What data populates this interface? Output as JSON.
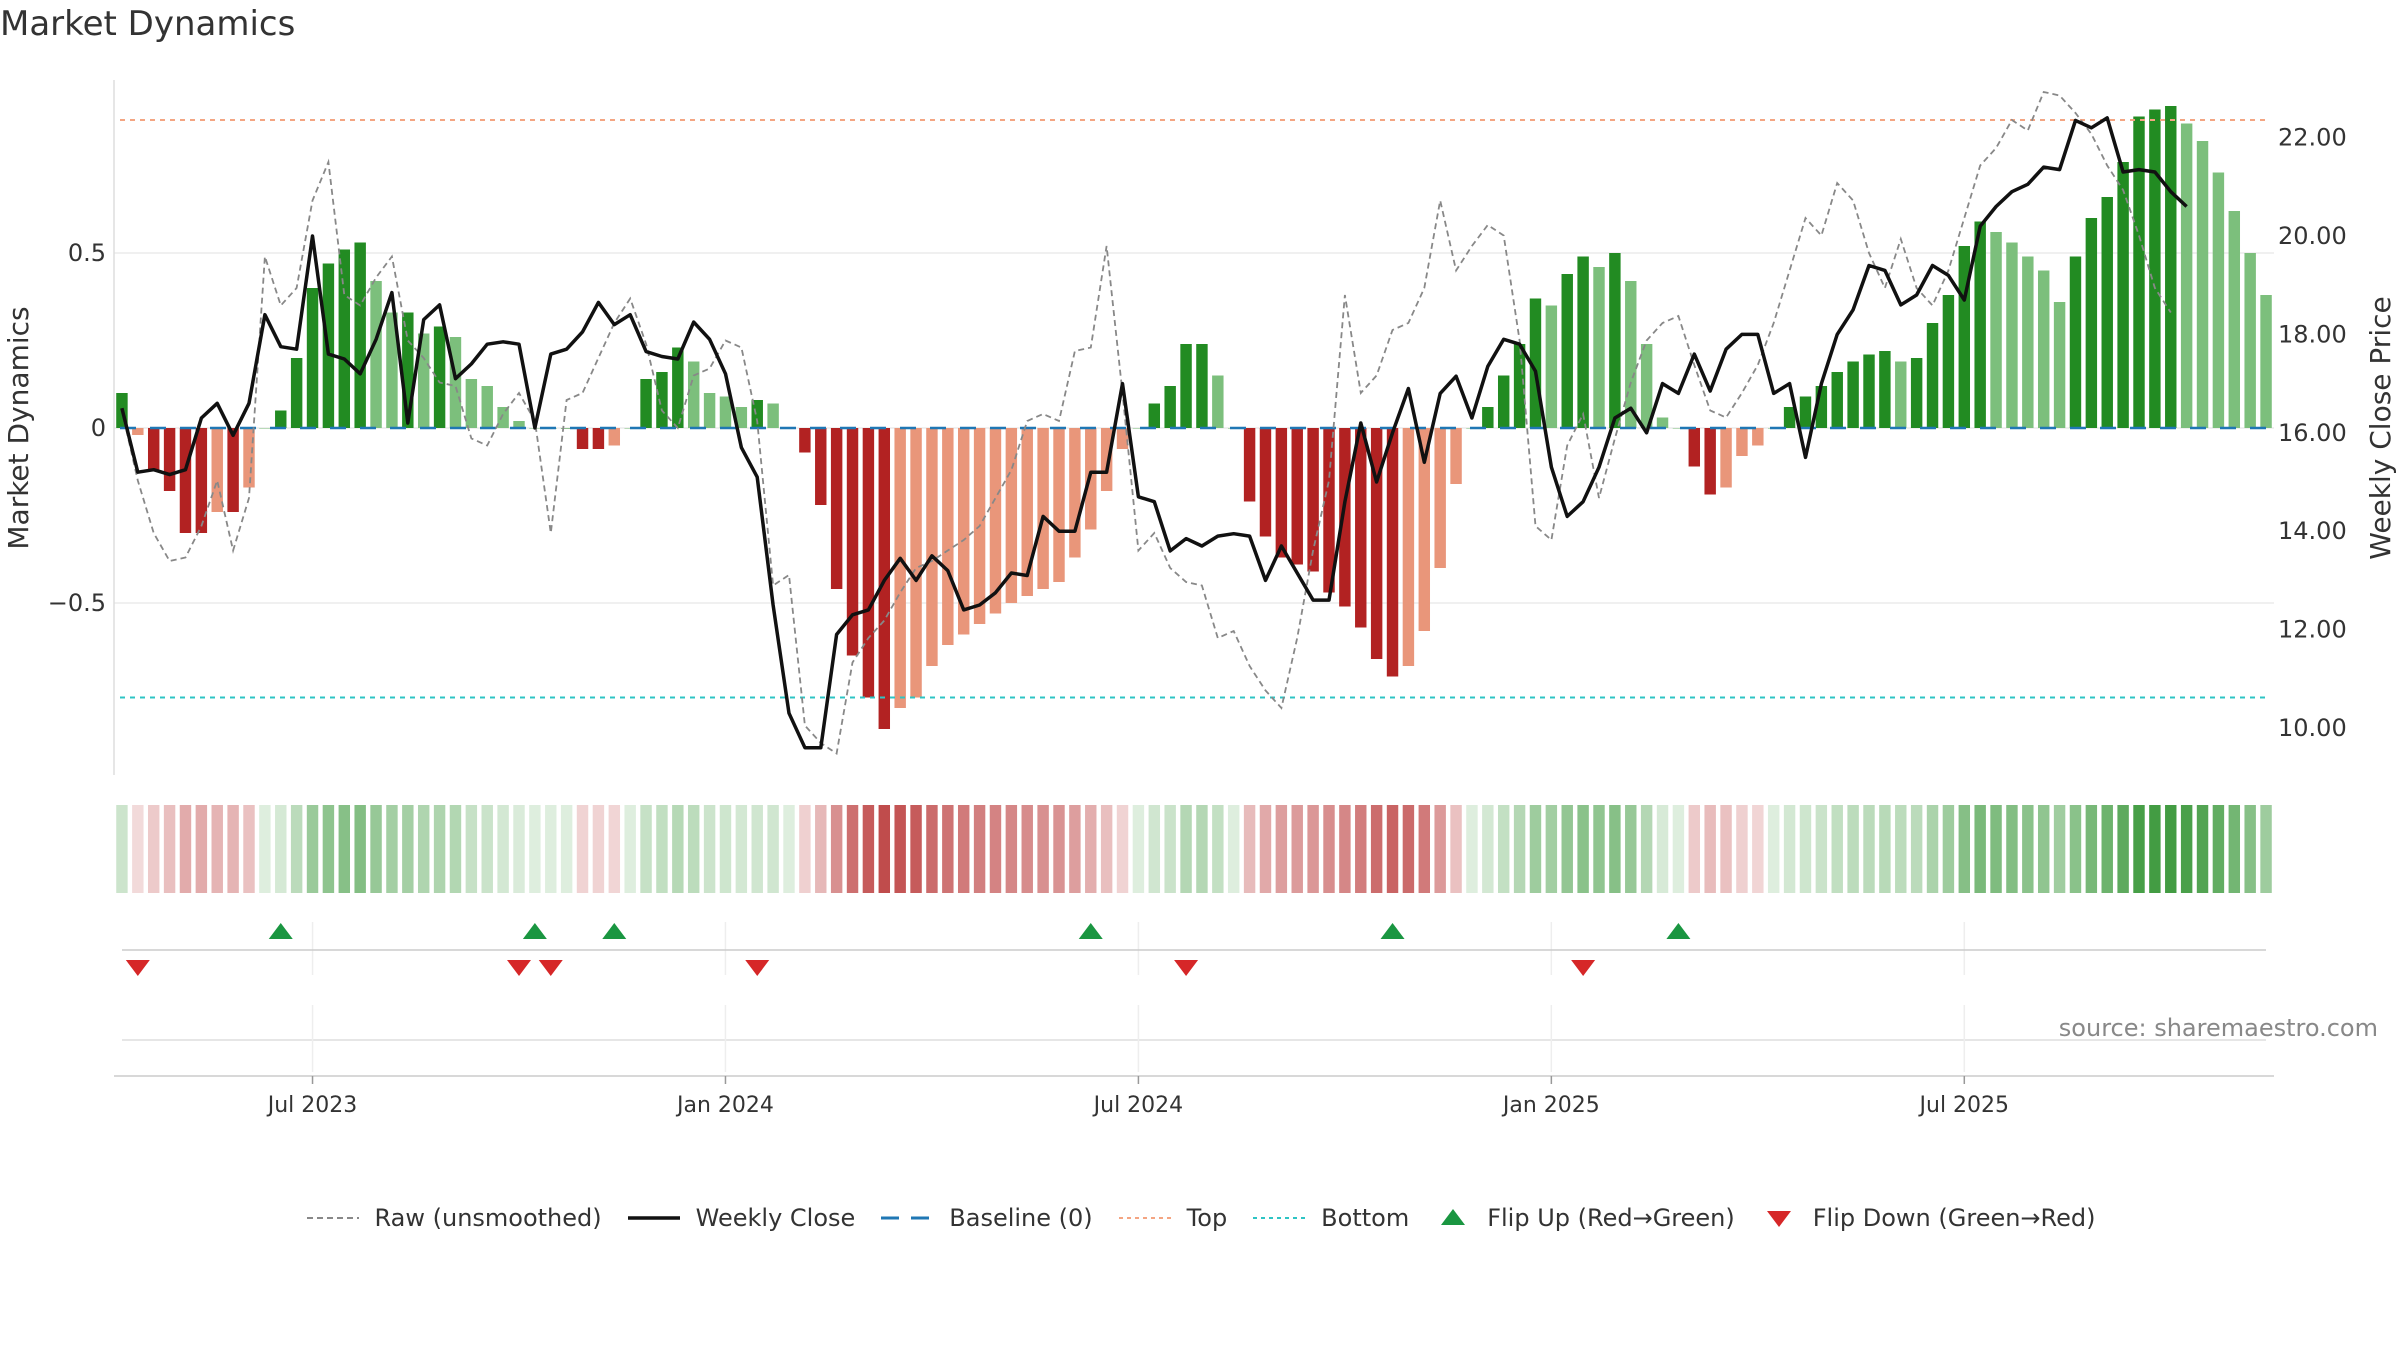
{
  "chart_data": {
    "title": "Market Dynamics",
    "source_note": "source: sharemaestro.com",
    "type": "bar",
    "y_left": {
      "label": "Market Dynamics",
      "ticks": [
        -0.5,
        0,
        0.5
      ],
      "tick_labels": [
        "−0.5",
        "0",
        "0.5"
      ],
      "range": [
        -0.99,
        0.99
      ]
    },
    "y_right": {
      "label": "Weekly Close Price",
      "ticks": [
        10,
        12,
        14,
        16,
        18,
        20,
        22
      ],
      "tick_labels": [
        "10.00",
        "12.00",
        "14.00",
        "16.00",
        "18.00",
        "20.00",
        "22.00"
      ],
      "range": [
        9.0,
        22.9
      ]
    },
    "x_ticks": [
      {
        "label": "Jul 2023",
        "week": 12
      },
      {
        "label": "Jan 2024",
        "week": 38
      },
      {
        "label": "Jul 2024",
        "week": 64
      },
      {
        "label": "Jan 2025",
        "week": 90
      },
      {
        "label": "Jul 2025",
        "week": 116
      }
    ],
    "weeks": 128,
    "top_level": 0.88,
    "bottom_level": -0.77,
    "dynamics": [
      0.1,
      -0.02,
      -0.12,
      -0.18,
      -0.3,
      -0.3,
      -0.24,
      -0.24,
      -0.17,
      0.0,
      0.05,
      0.2,
      0.4,
      0.47,
      0.51,
      0.53,
      0.42,
      0.33,
      0.33,
      0.27,
      0.29,
      0.26,
      0.14,
      0.12,
      0.06,
      0.02,
      0.0,
      0.0,
      0.0,
      -0.06,
      -0.06,
      -0.05,
      0.0,
      0.14,
      0.16,
      0.23,
      0.19,
      0.1,
      0.09,
      0.06,
      0.08,
      0.07,
      0.0,
      -0.07,
      -0.22,
      -0.46,
      -0.65,
      -0.77,
      -0.86,
      -0.8,
      -0.77,
      -0.68,
      -0.62,
      -0.59,
      -0.56,
      -0.53,
      -0.5,
      -0.48,
      -0.46,
      -0.44,
      -0.37,
      -0.29,
      -0.18,
      -0.06,
      0.0,
      0.07,
      0.12,
      0.24,
      0.24,
      0.15,
      0.0,
      -0.21,
      -0.31,
      -0.37,
      -0.39,
      -0.41,
      -0.47,
      -0.51,
      -0.57,
      -0.66,
      -0.71,
      -0.68,
      -0.58,
      -0.4,
      -0.16,
      0.0,
      0.06,
      0.15,
      0.24,
      0.37,
      0.35,
      0.44,
      0.49,
      0.46,
      0.5,
      0.42,
      0.24,
      0.03,
      0.0,
      -0.11,
      -0.19,
      -0.17,
      -0.08,
      -0.05,
      0.0,
      0.06,
      0.09,
      0.12,
      0.16,
      0.19,
      0.21,
      0.22,
      0.19,
      0.2,
      0.3,
      0.38,
      0.52,
      0.59,
      0.56,
      0.53,
      0.49,
      0.45,
      0.36,
      0.49,
      0.6,
      0.66,
      0.76,
      0.89,
      0.91,
      0.92
    ],
    "dynamics_tail": [
      0.87,
      0.82,
      0.73,
      0.62,
      0.5,
      0.38
    ],
    "raw": [
      0.05,
      -0.15,
      -0.3,
      -0.38,
      -0.37,
      -0.28,
      -0.15,
      -0.35,
      -0.2,
      0.49,
      0.35,
      0.4,
      0.65,
      0.76,
      0.38,
      0.35,
      0.43,
      0.49,
      0.25,
      0.2,
      0.13,
      0.12,
      -0.03,
      -0.05,
      0.04,
      0.1,
      0.02,
      -0.3,
      0.08,
      0.1,
      0.2,
      0.3,
      0.37,
      0.24,
      0.05,
      0.0,
      0.15,
      0.17,
      0.25,
      0.23,
      0.02,
      -0.45,
      -0.42,
      -0.85,
      -0.9,
      -0.93,
      -0.67,
      -0.6,
      -0.55,
      -0.47,
      -0.4,
      -0.38,
      -0.35,
      -0.32,
      -0.28,
      -0.2,
      -0.12,
      0.02,
      0.04,
      0.02,
      0.22,
      0.23,
      0.52,
      0.1,
      -0.35,
      -0.3,
      -0.4,
      -0.44,
      -0.45,
      -0.6,
      -0.58,
      -0.68,
      -0.75,
      -0.8,
      -0.6,
      -0.35,
      -0.15,
      0.38,
      0.1,
      0.15,
      0.28,
      0.3,
      0.4,
      0.65,
      0.45,
      0.52,
      0.58,
      0.55,
      0.25,
      -0.28,
      -0.32,
      -0.05,
      0.04,
      -0.2,
      -0.03,
      0.13,
      0.25,
      0.3,
      0.32,
      0.18,
      0.05,
      0.03,
      0.1,
      0.18,
      0.3,
      0.45,
      0.6,
      0.55,
      0.7,
      0.65,
      0.5,
      0.4,
      0.54,
      0.4,
      0.35,
      0.45,
      0.6,
      0.75,
      0.8,
      0.88,
      0.85,
      0.96,
      0.95,
      0.9,
      0.84,
      0.75,
      0.68,
      0.55,
      0.4,
      0.33
    ],
    "weekly_close": [
      16.5,
      15.2,
      15.25,
      15.15,
      15.25,
      16.3,
      16.6,
      15.95,
      16.6,
      18.4,
      17.75,
      17.7,
      20.0,
      17.6,
      17.5,
      17.2,
      17.9,
      18.85,
      16.2,
      18.3,
      18.6,
      17.1,
      17.4,
      17.8,
      17.85,
      17.8,
      16.1,
      17.6,
      17.7,
      18.05,
      18.65,
      18.2,
      18.4,
      17.65,
      17.55,
      17.5,
      18.25,
      17.9,
      17.2,
      15.7,
      15.1,
      12.5,
      10.3,
      9.6,
      9.6,
      11.9,
      12.3,
      12.4,
      13.0,
      13.45,
      13.0,
      13.5,
      13.2,
      12.4,
      12.5,
      12.75,
      13.15,
      13.1,
      14.3,
      14.0,
      14.0,
      15.2,
      15.2,
      17.0,
      14.7,
      14.6,
      13.6,
      13.85,
      13.7,
      13.9,
      13.95,
      13.9,
      13.0,
      13.7,
      13.15,
      12.6,
      12.6,
      14.6,
      16.2,
      15.0,
      16.0,
      16.9,
      15.4,
      16.8,
      17.15,
      16.3,
      17.35,
      17.9,
      17.8,
      17.25,
      15.3,
      14.3,
      14.6,
      15.3,
      16.3,
      16.5,
      16.0,
      17.0,
      16.8,
      17.6,
      16.85,
      17.7,
      18.0,
      18.0,
      16.8,
      17.0,
      15.5,
      17.0,
      18.0,
      18.5,
      19.4,
      19.3,
      18.6,
      18.8,
      19.4,
      19.2,
      18.7,
      20.2,
      20.6,
      20.9,
      21.05,
      21.4,
      21.35,
      22.35,
      22.2,
      22.4,
      21.3,
      21.35,
      21.3,
      20.9,
      20.6
    ],
    "flips_up": [
      10,
      26,
      31,
      61,
      80,
      98
    ],
    "flips_down": [
      1,
      25,
      27,
      40,
      67,
      92
    ],
    "colors": {
      "green_strong": "#228b22",
      "green_light": "#7cbf7c",
      "red_strong": "#b22222",
      "red_light": "#e9967a",
      "top_line": "#f4a582",
      "bottom_line": "#2ec4c4",
      "baseline": "#1f77b4",
      "close": "#111111",
      "raw": "#888888",
      "flip_up": "#1a9641",
      "flip_down": "#d62728"
    }
  },
  "legend": {
    "raw": "Raw (unsmoothed)",
    "close": "Weekly Close",
    "baseline": "Baseline (0)",
    "top": "Top",
    "bottom": "Bottom",
    "flip_up": "Flip Up (Red→Green)",
    "flip_down": "Flip Down (Green→Red)"
  }
}
